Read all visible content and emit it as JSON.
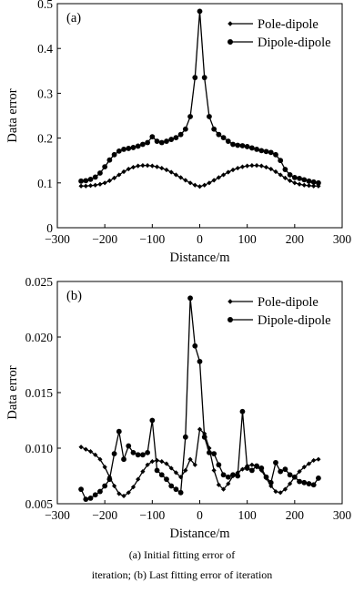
{
  "caption": {
    "line1": "(a) Initial fitting error of",
    "line2": "iteration; (b) Last fitting error of iteration"
  },
  "chart_data": [
    {
      "type": "line",
      "panel_label": "(a)",
      "xlabel": "Distance/m",
      "ylabel": "Data error",
      "xlim": [
        -300,
        300
      ],
      "ylim": [
        0,
        0.5
      ],
      "xticks": [
        "-300",
        "-200",
        "-100",
        "0",
        "100",
        "200",
        "300"
      ],
      "yticks": [
        "0",
        "0.1",
        "0.2",
        "0.3",
        "0.4",
        "0.5"
      ],
      "xtick_values": [
        -300,
        -200,
        -100,
        0,
        100,
        200,
        300
      ],
      "ytick_values": [
        0,
        0.1,
        0.2,
        0.3,
        0.4,
        0.5
      ],
      "legend_position": "top-right",
      "series": [
        {
          "name": "Pole-dipole",
          "marker": "diamond",
          "x": [
            -250,
            -240,
            -230,
            -220,
            -210,
            -200,
            -190,
            -180,
            -170,
            -160,
            -150,
            -140,
            -130,
            -120,
            -110,
            -100,
            -90,
            -80,
            -70,
            -60,
            -50,
            -40,
            -30,
            -20,
            -10,
            0,
            10,
            20,
            30,
            40,
            50,
            60,
            70,
            80,
            90,
            100,
            110,
            120,
            130,
            140,
            150,
            160,
            170,
            180,
            190,
            200,
            210,
            220,
            230,
            240,
            250
          ],
          "y": [
            0.093,
            0.093,
            0.094,
            0.095,
            0.097,
            0.1,
            0.105,
            0.111,
            0.118,
            0.125,
            0.131,
            0.135,
            0.138,
            0.139,
            0.139,
            0.138,
            0.136,
            0.133,
            0.129,
            0.124,
            0.118,
            0.112,
            0.106,
            0.1,
            0.095,
            0.092,
            0.095,
            0.1,
            0.106,
            0.112,
            0.118,
            0.124,
            0.129,
            0.133,
            0.136,
            0.138,
            0.139,
            0.139,
            0.138,
            0.135,
            0.131,
            0.125,
            0.118,
            0.111,
            0.105,
            0.1,
            0.097,
            0.095,
            0.094,
            0.093,
            0.093
          ]
        },
        {
          "name": "Dipole-dipole",
          "marker": "circle",
          "x": [
            -250,
            -240,
            -230,
            -220,
            -210,
            -200,
            -190,
            -180,
            -170,
            -160,
            -150,
            -140,
            -130,
            -120,
            -110,
            -100,
            -90,
            -80,
            -70,
            -60,
            -50,
            -40,
            -30,
            -20,
            -10,
            0,
            10,
            20,
            30,
            40,
            50,
            60,
            70,
            80,
            90,
            100,
            110,
            120,
            130,
            140,
            150,
            160,
            170,
            180,
            190,
            200,
            210,
            220,
            230,
            240,
            250
          ],
          "y": [
            0.104,
            0.105,
            0.108,
            0.113,
            0.122,
            0.136,
            0.151,
            0.163,
            0.171,
            0.175,
            0.177,
            0.179,
            0.182,
            0.186,
            0.19,
            0.203,
            0.193,
            0.19,
            0.193,
            0.197,
            0.201,
            0.208,
            0.22,
            0.248,
            0.335,
            0.483,
            0.335,
            0.248,
            0.22,
            0.208,
            0.201,
            0.193,
            0.186,
            0.184,
            0.183,
            0.181,
            0.178,
            0.175,
            0.172,
            0.17,
            0.168,
            0.163,
            0.15,
            0.13,
            0.118,
            0.112,
            0.11,
            0.107,
            0.104,
            0.102,
            0.1
          ]
        }
      ]
    },
    {
      "type": "line",
      "panel_label": "(b)",
      "xlabel": "Distance/m",
      "ylabel": "Data error",
      "xlim": [
        -300,
        300
      ],
      "ylim": [
        0.005,
        0.025
      ],
      "xticks": [
        "-300",
        "-200",
        "-100",
        "0",
        "100",
        "200",
        "300"
      ],
      "yticks": [
        "0.005",
        "0.010",
        "0.015",
        "0.020",
        "0.025"
      ],
      "xtick_values": [
        -300,
        -200,
        -100,
        0,
        100,
        200,
        300
      ],
      "ytick_values": [
        0.005,
        0.01,
        0.015,
        0.02,
        0.025
      ],
      "legend_position": "top-right",
      "series": [
        {
          "name": "Pole-dipole",
          "marker": "diamond",
          "x": [
            -250,
            -240,
            -230,
            -220,
            -210,
            -200,
            -190,
            -180,
            -170,
            -160,
            -150,
            -140,
            -130,
            -120,
            -110,
            -100,
            -90,
            -80,
            -70,
            -60,
            -50,
            -40,
            -30,
            -20,
            -10,
            0,
            10,
            20,
            30,
            40,
            50,
            60,
            70,
            80,
            90,
            100,
            110,
            120,
            130,
            140,
            150,
            160,
            170,
            180,
            190,
            200,
            210,
            220,
            230,
            240,
            250
          ],
          "y": [
            0.0101,
            0.0099,
            0.0097,
            0.0094,
            0.009,
            0.0083,
            0.0074,
            0.0066,
            0.0059,
            0.0057,
            0.006,
            0.0065,
            0.0072,
            0.0079,
            0.0085,
            0.0088,
            0.0089,
            0.0088,
            0.0086,
            0.0082,
            0.0078,
            0.0074,
            0.008,
            0.009,
            0.0085,
            0.0117,
            0.0113,
            0.01,
            0.008,
            0.0067,
            0.0063,
            0.0068,
            0.0075,
            0.0078,
            0.0081,
            0.0084,
            0.0085,
            0.0083,
            0.008,
            0.0073,
            0.0066,
            0.0061,
            0.006,
            0.0063,
            0.0068,
            0.0074,
            0.0079,
            0.0083,
            0.0086,
            0.0089,
            0.009
          ]
        },
        {
          "name": "Dipole-dipole",
          "marker": "circle",
          "x": [
            -250,
            -240,
            -230,
            -220,
            -210,
            -200,
            -190,
            -180,
            -170,
            -160,
            -150,
            -140,
            -130,
            -120,
            -110,
            -100,
            -90,
            -80,
            -70,
            -60,
            -50,
            -40,
            -30,
            -20,
            -10,
            0,
            10,
            20,
            30,
            40,
            50,
            60,
            70,
            80,
            90,
            100,
            110,
            120,
            130,
            140,
            150,
            160,
            170,
            180,
            190,
            200,
            210,
            220,
            230,
            240,
            250
          ],
          "y": [
            0.0063,
            0.0054,
            0.0055,
            0.0058,
            0.0061,
            0.0066,
            0.0072,
            0.0095,
            0.0115,
            0.009,
            0.0102,
            0.0096,
            0.0094,
            0.0094,
            0.0096,
            0.0125,
            0.008,
            0.0076,
            0.0072,
            0.0066,
            0.0063,
            0.006,
            0.011,
            0.0235,
            0.0192,
            0.0178,
            0.011,
            0.0096,
            0.0095,
            0.0085,
            0.0076,
            0.0074,
            0.0076,
            0.0075,
            0.0133,
            0.0082,
            0.008,
            0.0084,
            0.0082,
            0.0074,
            0.0069,
            0.0087,
            0.0079,
            0.0081,
            0.0076,
            0.0074,
            0.007,
            0.0069,
            0.0068,
            0.0067,
            0.0073
          ]
        }
      ]
    }
  ]
}
